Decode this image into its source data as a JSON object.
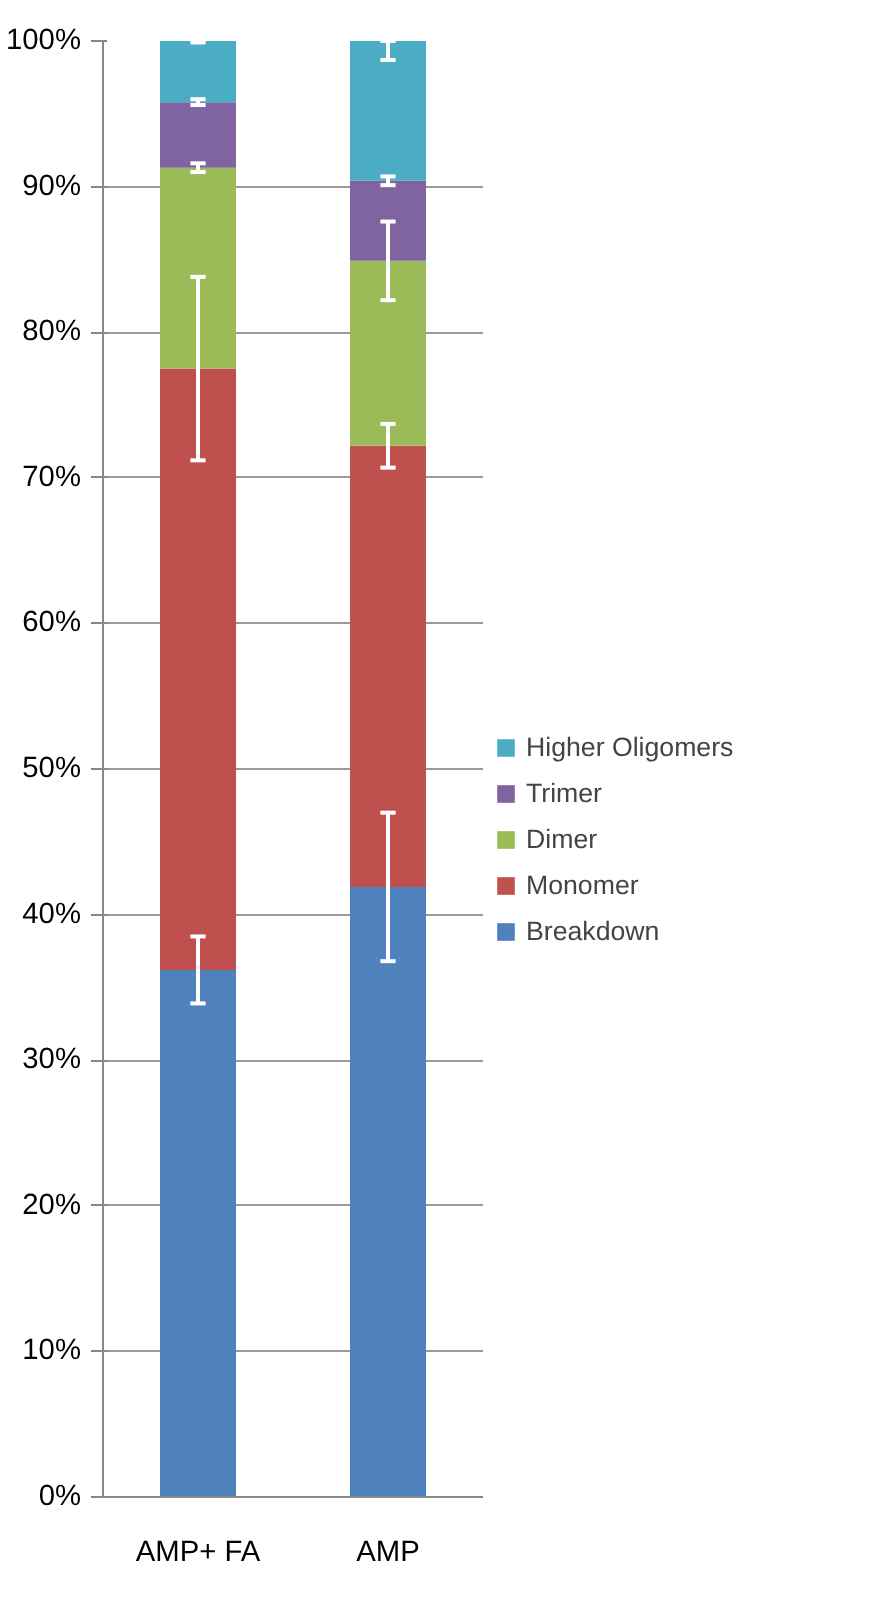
{
  "chart_data": {
    "type": "bar",
    "stacked": true,
    "categories": [
      "AMP+ FA",
      "AMP"
    ],
    "series": [
      {
        "name": "Breakdown",
        "color": "#4f81bd",
        "values": [
          36.2,
          41.9
        ],
        "errors": [
          2.3,
          5.1
        ]
      },
      {
        "name": "Monomer",
        "color": "#c0504d",
        "values": [
          41.3,
          30.3
        ],
        "errors": [
          6.3,
          1.5
        ]
      },
      {
        "name": "Dimer",
        "color": "#9bbb59",
        "values": [
          13.8,
          12.7
        ],
        "errors": [
          0.3,
          2.7
        ]
      },
      {
        "name": "Trimer",
        "color": "#8064a2",
        "values": [
          4.5,
          5.5
        ],
        "errors": [
          0.2,
          0.3
        ]
      },
      {
        "name": "Higher Oligomers",
        "color": "#4bacc6",
        "values": [
          4.2,
          9.6
        ],
        "errors": [
          0.1,
          [
            98.7,
            100
          ]
        ]
      }
    ],
    "ylim": [
      0,
      100
    ],
    "yticks": [
      {
        "value": 0,
        "label": "0%"
      },
      {
        "value": 10,
        "label": "10%"
      },
      {
        "value": 20,
        "label": "20%"
      },
      {
        "value": 30,
        "label": "30%"
      },
      {
        "value": 40,
        "label": "40%"
      },
      {
        "value": 50,
        "label": "50%"
      },
      {
        "value": 60,
        "label": "60%"
      },
      {
        "value": 70,
        "label": "70%"
      },
      {
        "value": 80,
        "label": "80%"
      },
      {
        "value": 90,
        "label": "90%"
      },
      {
        "value": 100,
        "label": "100%"
      }
    ],
    "grid": "y",
    "legend": "right"
  }
}
